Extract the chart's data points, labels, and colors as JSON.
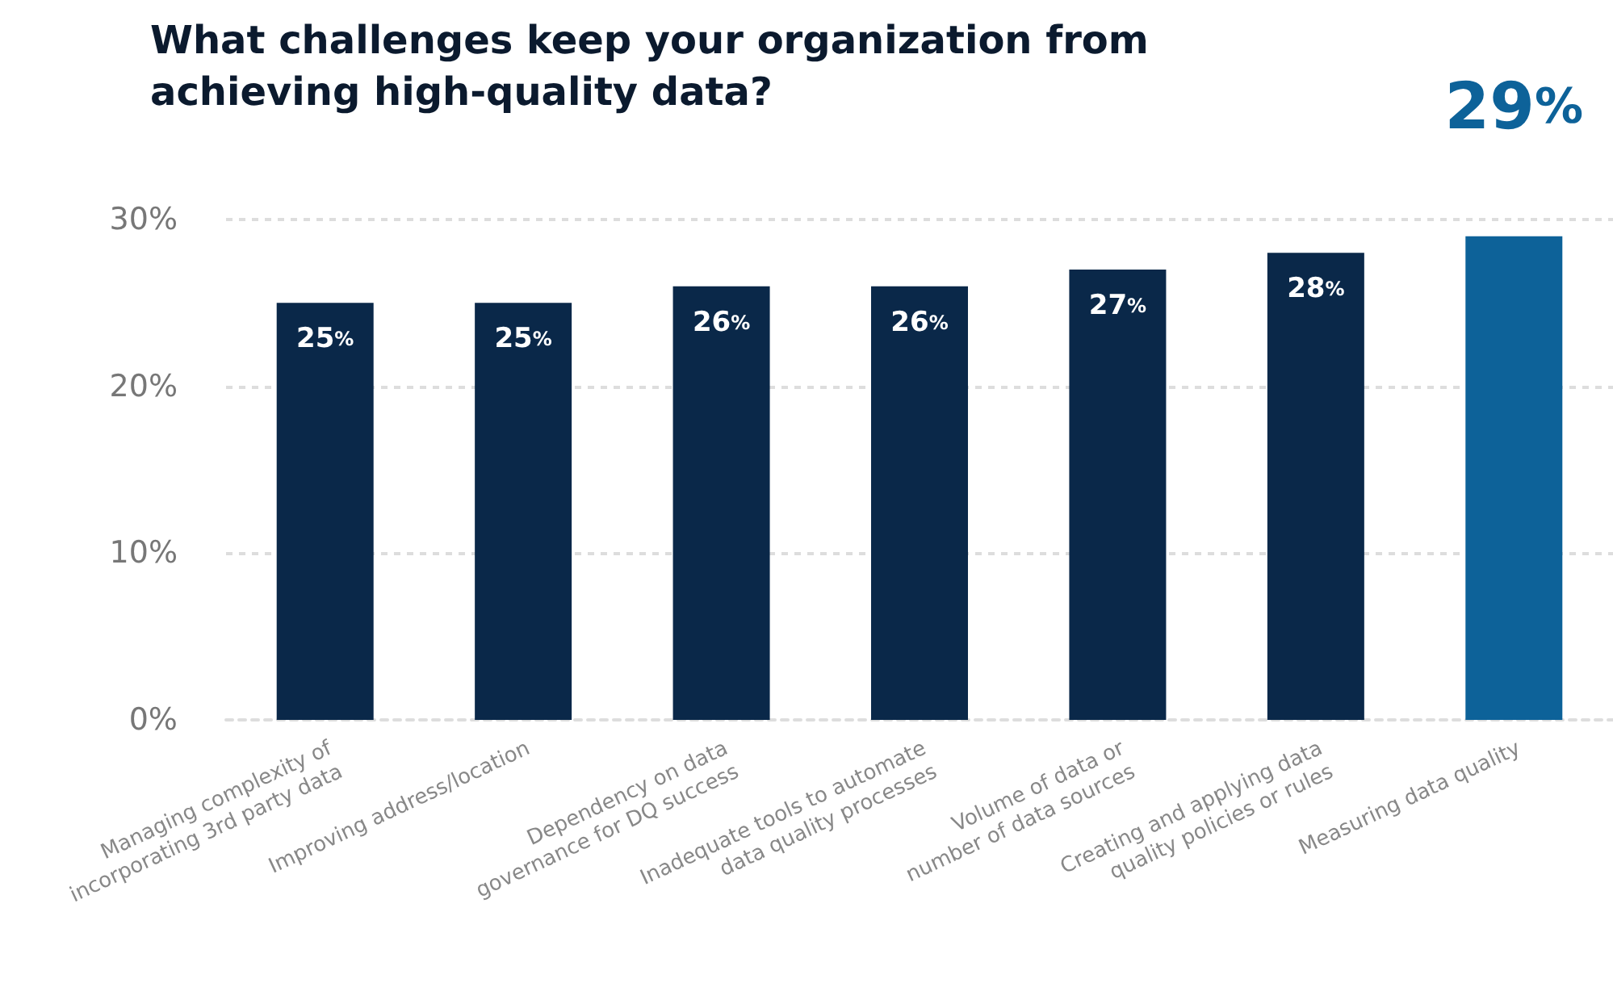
{
  "chart_data": {
    "type": "bar",
    "title": "What challenges keep your organization from achieving high-quality data?",
    "categories": [
      "Managing complexity of incorporating 3rd party data",
      "Improving address/location",
      "Dependency on data governance for DQ success",
      "Inadequate tools to automate data quality processes",
      "Volume of data or number of data sources",
      "Creating and applying data quality policies or rules",
      "Measuring data quality"
    ],
    "values": [
      25,
      25,
      26,
      26,
      27,
      28,
      29
    ],
    "value_labels": [
      "25%",
      "25%",
      "26%",
      "26%",
      "27%",
      "28%",
      "29%"
    ],
    "colors": [
      "#0a2849",
      "#0a2849",
      "#0a2849",
      "#0a2849",
      "#0a2849",
      "#0a2849",
      "#0d6299"
    ],
    "ylim": [
      0,
      30
    ],
    "yticks": [
      {
        "value": 0,
        "label": "0%"
      },
      {
        "value": 10,
        "label": "10%"
      },
      {
        "value": 20,
        "label": "20%"
      },
      {
        "value": 30,
        "label": "30%"
      }
    ],
    "grid": "y"
  }
}
